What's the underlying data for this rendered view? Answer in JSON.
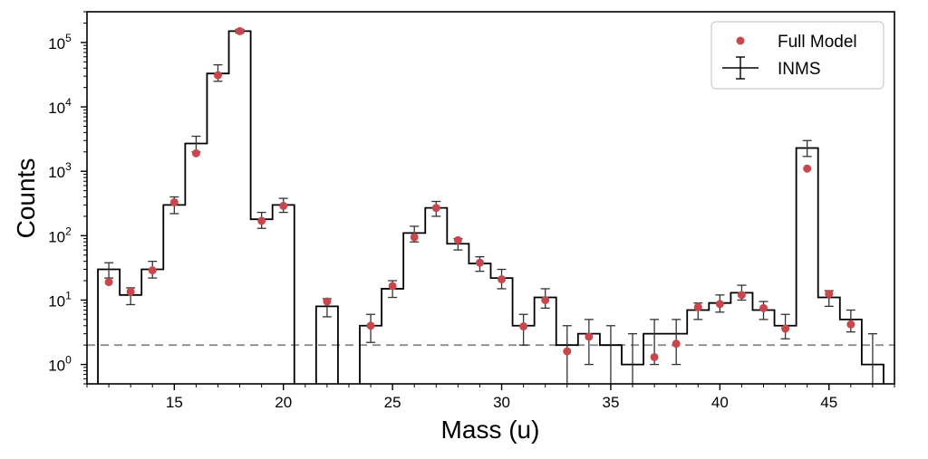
{
  "chart_data": {
    "type": "line",
    "title": "",
    "xlabel": "Mass (u)",
    "ylabel": "Counts",
    "xlim": [
      11,
      48
    ],
    "ylim": [
      0.5,
      300000
    ],
    "yscale": "log",
    "grid": false,
    "legend_position": "top-right",
    "xticks": [
      15,
      20,
      25,
      30,
      35,
      40,
      45
    ],
    "yticks": [
      {
        "value": 1,
        "base": "10",
        "exp": "0"
      },
      {
        "value": 10,
        "base": "10",
        "exp": "1"
      },
      {
        "value": 100,
        "base": "10",
        "exp": "2"
      },
      {
        "value": 1000,
        "base": "10",
        "exp": "3"
      },
      {
        "value": 10000,
        "base": "10",
        "exp": "4"
      },
      {
        "value": 100000,
        "base": "10",
        "exp": "5"
      }
    ],
    "reference_line": {
      "y": 2,
      "color": "#8c8c8c",
      "style": "dashed"
    },
    "inms": {
      "name": "INMS",
      "color": "#000000",
      "bins": [
        {
          "mass": 12,
          "count": 30,
          "lo": 22,
          "hi": 38
        },
        {
          "mass": 13,
          "count": 12,
          "lo": 8.5,
          "hi": 15.5
        },
        {
          "mass": 14,
          "count": 30,
          "lo": 22,
          "hi": 40
        },
        {
          "mass": 15,
          "count": 300,
          "lo": 220,
          "hi": 400
        },
        {
          "mass": 16,
          "count": 2700,
          "lo": 2000,
          "hi": 3500
        },
        {
          "mass": 17,
          "count": 33000,
          "lo": 25000,
          "hi": 45000
        },
        {
          "mass": 18,
          "count": 150000,
          "lo": 140000,
          "hi": 160000
        },
        {
          "mass": 19,
          "count": 180,
          "lo": 130,
          "hi": 230
        },
        {
          "mass": 20,
          "count": 300,
          "lo": 230,
          "hi": 380
        },
        {
          "mass": 21,
          "count": null
        },
        {
          "mass": 22,
          "count": 8,
          "lo": 5.5,
          "hi": 10.5
        },
        {
          "mass": 23,
          "count": null
        },
        {
          "mass": 24,
          "count": 4,
          "lo": 2.2,
          "hi": 6
        },
        {
          "mass": 25,
          "count": 15,
          "lo": 11,
          "hi": 20
        },
        {
          "mass": 26,
          "count": 110,
          "lo": 80,
          "hi": 140
        },
        {
          "mass": 27,
          "count": 270,
          "lo": 200,
          "hi": 340
        },
        {
          "mass": 28,
          "count": 75,
          "lo": 60,
          "hi": 90
        },
        {
          "mass": 29,
          "count": 37,
          "lo": 28,
          "hi": 47
        },
        {
          "mass": 30,
          "count": 22,
          "lo": 15,
          "hi": 30
        },
        {
          "mass": 31,
          "count": 4,
          "lo": 2,
          "hi": 6
        },
        {
          "mass": 32,
          "count": 11,
          "lo": 7.5,
          "hi": 15
        },
        {
          "mass": 33,
          "count": 2,
          "lo": 0.5,
          "hi": 4
        },
        {
          "mass": 34,
          "count": 3,
          "lo": 1,
          "hi": 5
        },
        {
          "mass": 35,
          "count": 2,
          "lo": 0.5,
          "hi": 4
        },
        {
          "mass": 36,
          "count": 1,
          "lo": 0.5,
          "hi": 3
        },
        {
          "mass": 37,
          "count": 3,
          "lo": 1,
          "hi": 5
        },
        {
          "mass": 38,
          "count": 3,
          "lo": 1,
          "hi": 5
        },
        {
          "mass": 39,
          "count": 7,
          "lo": 5,
          "hi": 9
        },
        {
          "mass": 40,
          "count": 9,
          "lo": 6.5,
          "hi": 12
        },
        {
          "mass": 41,
          "count": 13,
          "lo": 10,
          "hi": 17
        },
        {
          "mass": 42,
          "count": 7,
          "lo": 5,
          "hi": 9.5
        },
        {
          "mass": 43,
          "count": 4,
          "lo": 2.5,
          "hi": 6
        },
        {
          "mass": 44,
          "count": 2300,
          "lo": 1700,
          "hi": 3000
        },
        {
          "mass": 45,
          "count": 11,
          "lo": 8,
          "hi": 14
        },
        {
          "mass": 46,
          "count": 5,
          "lo": 3.2,
          "hi": 7
        },
        {
          "mass": 47,
          "count": 1,
          "lo": 0.5,
          "hi": 3
        }
      ]
    },
    "full_model": {
      "name": "Full Model",
      "color": "#c8474c",
      "points": [
        {
          "mass": 12,
          "count": 19
        },
        {
          "mass": 13,
          "count": 13.5
        },
        {
          "mass": 14,
          "count": 29
        },
        {
          "mass": 15,
          "count": 330
        },
        {
          "mass": 16,
          "count": 1900
        },
        {
          "mass": 17,
          "count": 31000
        },
        {
          "mass": 18,
          "count": 150000
        },
        {
          "mass": 19,
          "count": 170
        },
        {
          "mass": 20,
          "count": 290
        },
        {
          "mass": 22,
          "count": 9.5
        },
        {
          "mass": 24,
          "count": 4
        },
        {
          "mass": 25,
          "count": 16.5
        },
        {
          "mass": 26,
          "count": 95
        },
        {
          "mass": 27,
          "count": 270
        },
        {
          "mass": 28,
          "count": 85
        },
        {
          "mass": 29,
          "count": 38
        },
        {
          "mass": 30,
          "count": 21
        },
        {
          "mass": 31,
          "count": 3.9
        },
        {
          "mass": 32,
          "count": 10
        },
        {
          "mass": 33,
          "count": 1.6
        },
        {
          "mass": 34,
          "count": 2.7
        },
        {
          "mass": 37,
          "count": 1.3
        },
        {
          "mass": 38,
          "count": 2.1
        },
        {
          "mass": 39,
          "count": 7.8
        },
        {
          "mass": 40,
          "count": 8.7
        },
        {
          "mass": 41,
          "count": 12
        },
        {
          "mass": 42,
          "count": 7.5
        },
        {
          "mass": 43,
          "count": 3.6
        },
        {
          "mass": 44,
          "count": 1100
        },
        {
          "mass": 45,
          "count": 12.5
        },
        {
          "mass": 46,
          "count": 4.2
        }
      ]
    }
  }
}
